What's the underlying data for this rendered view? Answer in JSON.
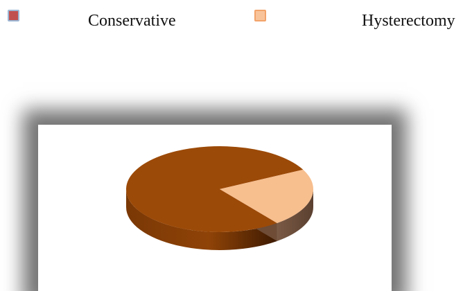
{
  "chart_data": {
    "type": "pie",
    "style": "3d",
    "categories": [
      "Conservative",
      "Hysterectomy"
    ],
    "values": [
      78,
      22
    ],
    "legend_position": "top",
    "colors": [
      "#9c4a08",
      "#f7be8e"
    ]
  },
  "legend": {
    "items": [
      {
        "label": "Conservative",
        "swatch_color": "#c05050"
      },
      {
        "label": "Hysterectomy",
        "swatch_color": "#f9c39a"
      }
    ]
  }
}
